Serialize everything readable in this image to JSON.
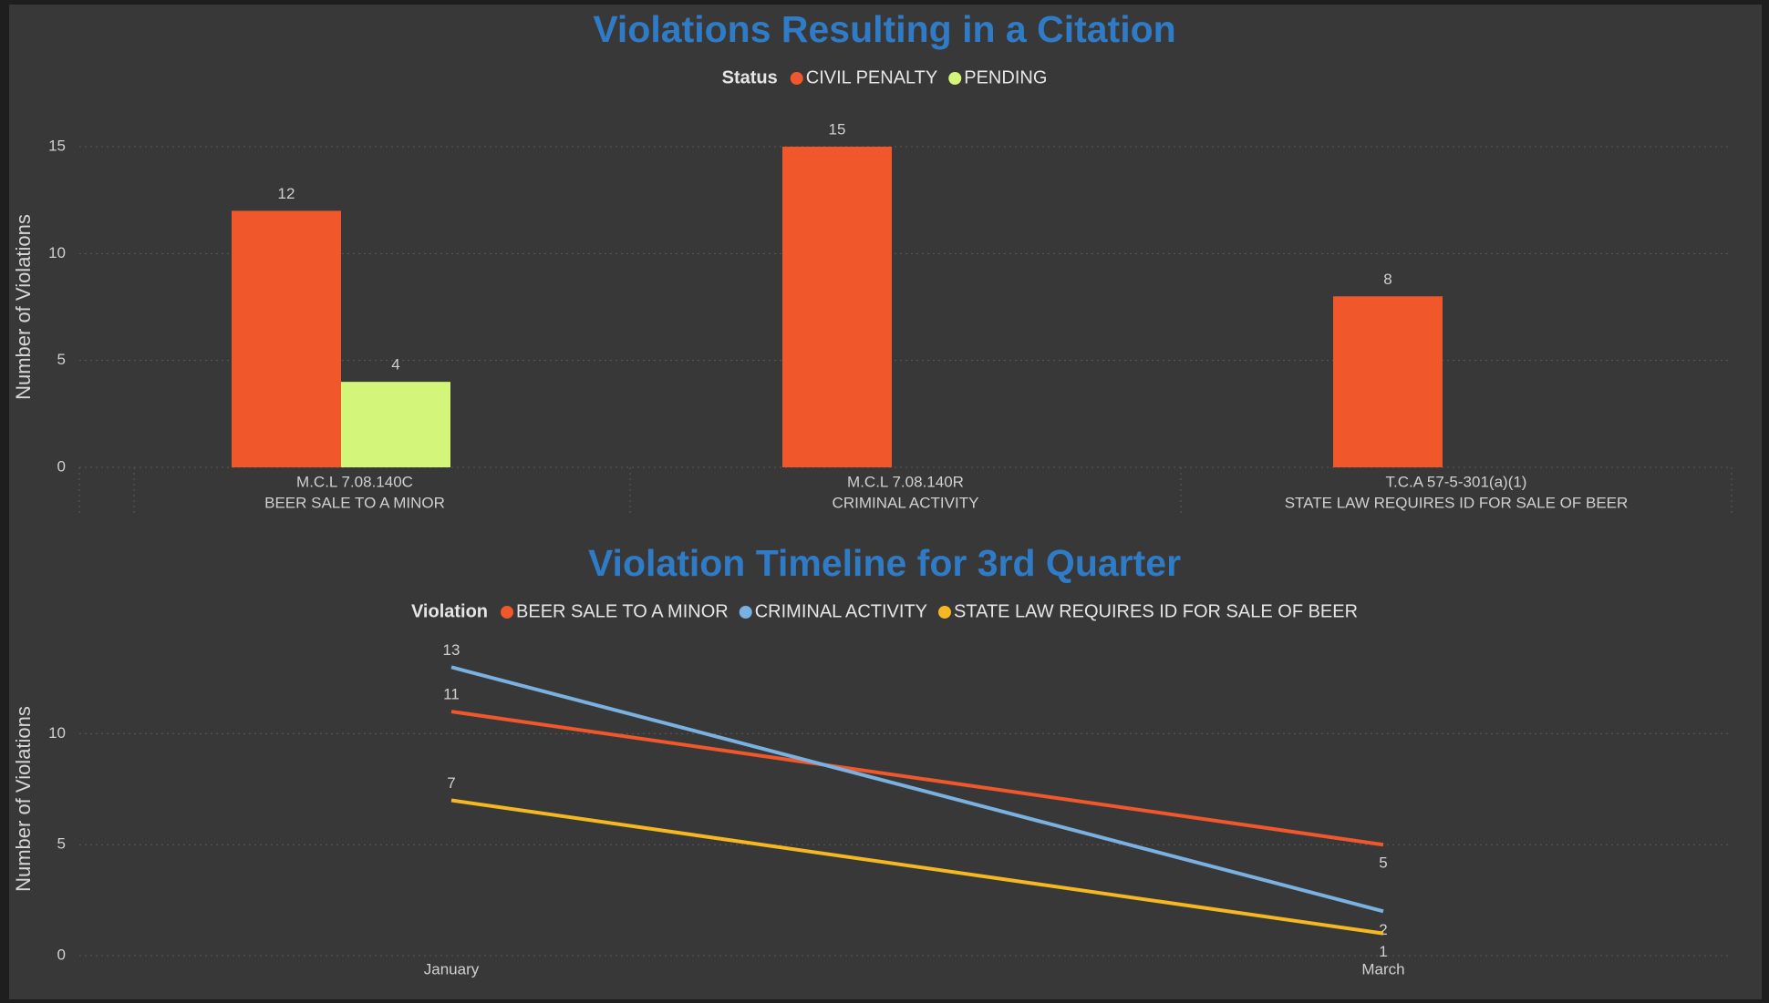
{
  "chart_data": [
    {
      "type": "bar",
      "title": "Violations Resulting in a Citation",
      "legend_title": "Status",
      "y_label": "Number of Violations",
      "categories": [
        [
          "M.C.L 7.08.140C",
          "BEER SALE TO A MINOR"
        ],
        [
          "M.C.L 7.08.140R",
          "CRIMINAL ACTIVITY"
        ],
        [
          "T.C.A 57-5-301(a)(1)",
          "STATE LAW REQUIRES ID FOR SALE OF BEER"
        ]
      ],
      "series": [
        {
          "name": "CIVIL PENALTY",
          "color": "#f0572a",
          "values": [
            12,
            15,
            8
          ]
        },
        {
          "name": "PENDING",
          "color": "#d3f57a",
          "values": [
            4,
            null,
            null
          ]
        }
      ],
      "ylim": [
        0,
        15
      ],
      "yticks": [
        0,
        5,
        10,
        15
      ],
      "grid": true
    },
    {
      "type": "line",
      "title": "Violation Timeline for 3rd Quarter",
      "legend_title": "Violation",
      "y_label": "Number of Violations",
      "categories": [
        "January",
        "March"
      ],
      "series": [
        {
          "name": "BEER SALE TO A MINOR",
          "color": "#f0572a",
          "values": [
            11,
            5
          ]
        },
        {
          "name": "CRIMINAL ACTIVITY",
          "color": "#7ab1e0",
          "values": [
            13,
            2
          ]
        },
        {
          "name": "STATE LAW REQUIRES ID FOR SALE OF BEER",
          "color": "#f5b823",
          "values": [
            7,
            1
          ]
        }
      ],
      "ylim": [
        0,
        14
      ],
      "yticks": [
        0,
        5,
        10
      ],
      "grid": true
    }
  ]
}
